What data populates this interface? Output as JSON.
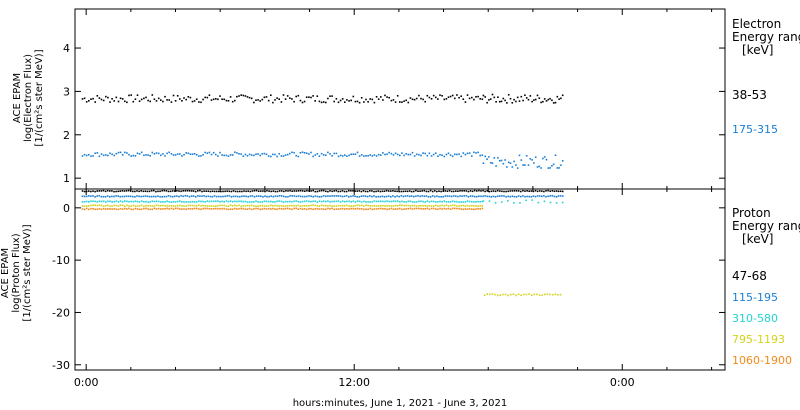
{
  "chart_data": [
    {
      "type": "scatter",
      "title": "",
      "ylabel": [
        "ACE EPAM",
        "log(Electron Flux)",
        "[1/(cm²s ster MeV)]"
      ],
      "xlim": [
        -0.5,
        28.6
      ],
      "ylim": [
        0.75,
        4.9
      ],
      "yticks": [
        1,
        2,
        3,
        4
      ],
      "legend_title": [
        "Electron",
        "Energy range",
        "[keV]"
      ],
      "series": [
        {
          "name": "38-53",
          "color": "#000000",
          "segments": [
            {
              "x0": -0.2,
              "x1": 17.7,
              "base": 2.83,
              "noise": 0.09,
              "n": 190
            },
            {
              "x0": 17.75,
              "x1": 21.3,
              "base": 2.83,
              "noise": 0.1,
              "n": 45
            }
          ]
        },
        {
          "name": "175-315",
          "color": "#1a7fd4",
          "segments": [
            {
              "x0": -0.2,
              "x1": 17.7,
              "base": 1.55,
              "noise": 0.05,
              "n": 190
            },
            {
              "x0": 17.75,
              "x1": 21.3,
              "base": 1.38,
              "noise": 0.15,
              "n": 45
            }
          ]
        }
      ]
    },
    {
      "type": "scatter",
      "title": "",
      "ylabel": [
        "ACE EPAM",
        "log(Proton Flux)",
        "[1/(cm²s ster MeV)]"
      ],
      "xlim": [
        -0.5,
        28.6
      ],
      "ylim": [
        -31,
        3.6
      ],
      "yticks": [
        -30,
        -20,
        -10,
        0
      ],
      "legend_title": [
        "Proton",
        "Energy range",
        "[keV]"
      ],
      "series": [
        {
          "name": "47-68",
          "color": "#000000",
          "segments": [
            {
              "x0": -0.2,
              "x1": 21.3,
              "base": 3.2,
              "noise": 0.1,
              "n": 230
            }
          ]
        },
        {
          "name": "115-195",
          "color": "#1a7fd4",
          "segments": [
            {
              "x0": -0.2,
              "x1": 21.3,
              "base": 2.2,
              "noise": 0.1,
              "n": 230
            }
          ]
        },
        {
          "name": "310-580",
          "color": "#22d3d3",
          "segments": [
            {
              "x0": -0.2,
              "x1": 17.7,
              "base": 1.2,
              "noise": 0.1,
              "n": 190
            },
            {
              "x0": 17.75,
              "x1": 21.3,
              "base": 1.2,
              "noise": 0.3,
              "n": 14
            }
          ]
        },
        {
          "name": "795-1193",
          "color": "#d2d21a",
          "segments": [
            {
              "x0": -0.2,
              "x1": 17.7,
              "base": 0.4,
              "noise": 0.1,
              "n": 190
            },
            {
              "x0": 17.8,
              "x1": 21.2,
              "base": -16.6,
              "noise": 0.15,
              "n": 30
            }
          ]
        },
        {
          "name": "1060-1900",
          "color": "#f08a1a",
          "segments": [
            {
              "x0": -0.2,
              "x1": 17.7,
              "base": -0.2,
              "noise": 0.1,
              "n": 190
            }
          ]
        }
      ]
    }
  ],
  "x_axis": {
    "ticks": [
      {
        "value": 0,
        "label": "0:00"
      },
      {
        "value": 12,
        "label": "12:00"
      },
      {
        "value": 24,
        "label": "0:00"
      }
    ],
    "minor_step": 2,
    "title": "hours:minutes, June  1, 2021 - June  3, 2021"
  }
}
